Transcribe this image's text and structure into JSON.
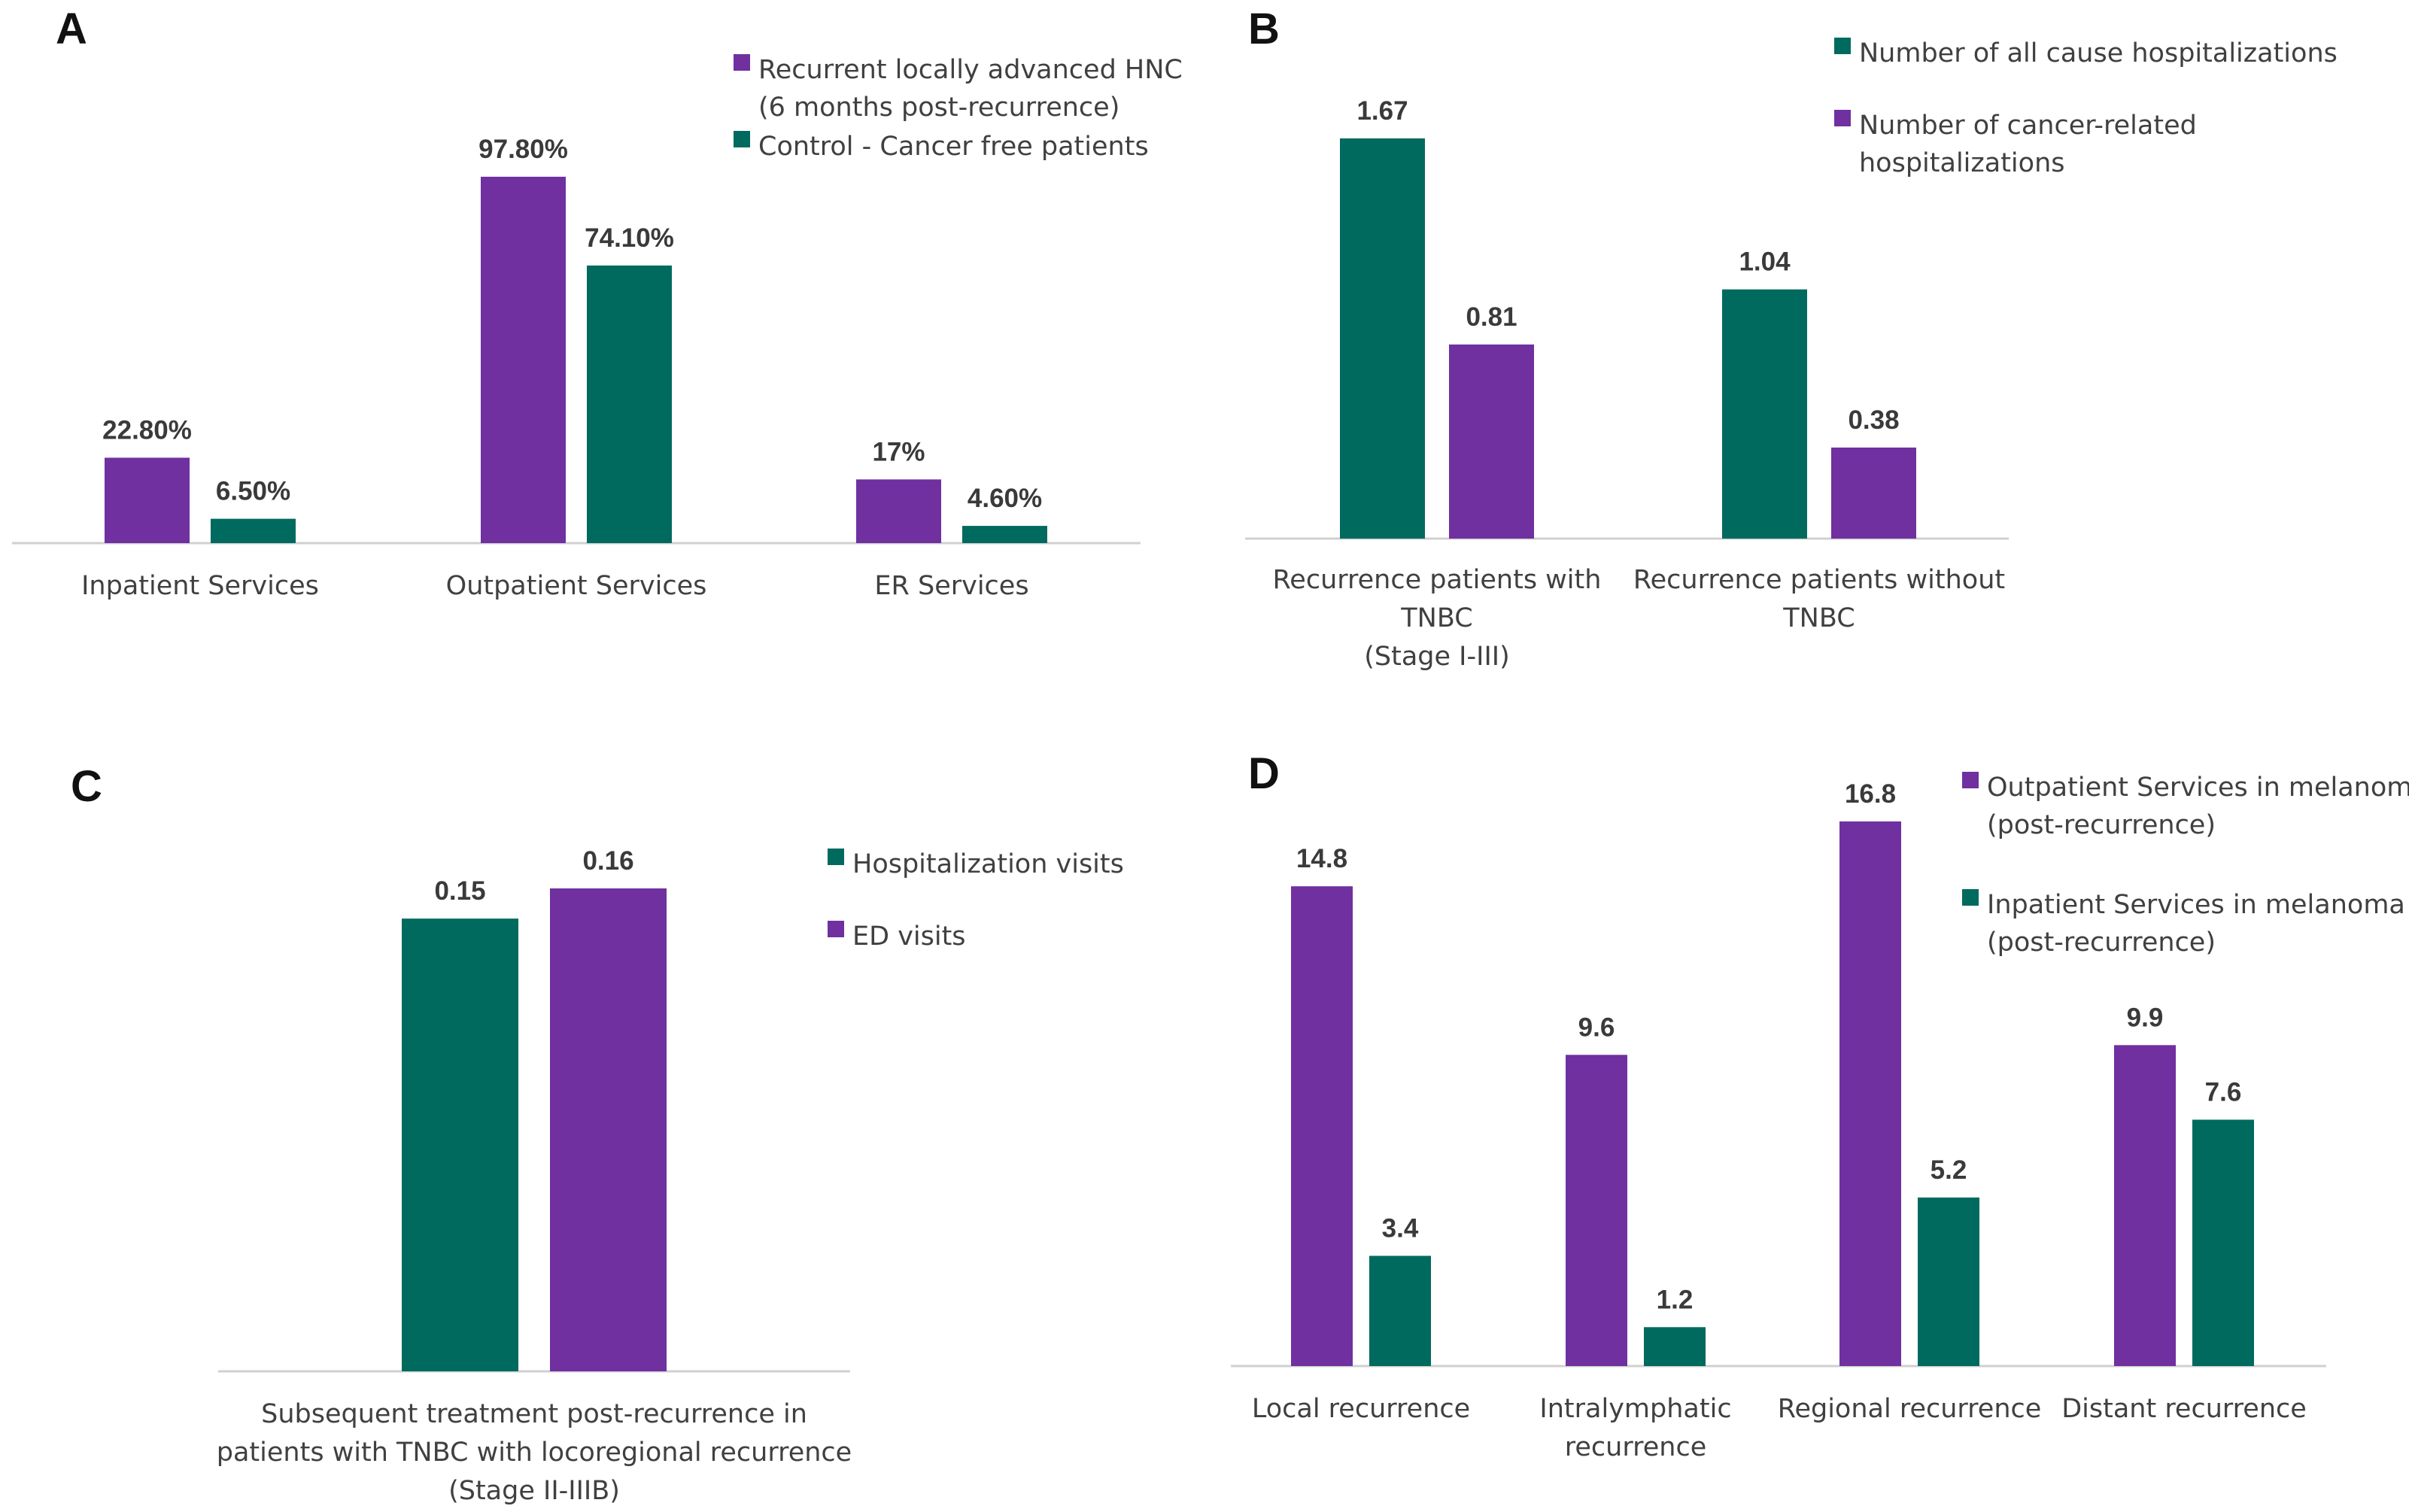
{
  "colors": {
    "purple": "#7030a0",
    "teal": "#006a5e"
  },
  "chart_data": [
    {
      "id": "A",
      "panel_label": "A",
      "type": "bar",
      "categories": [
        "Inpatient Services",
        "Outpatient Services",
        "ER Services"
      ],
      "series": [
        {
          "name": "Recurrent locally advanced HNC (6 months post-recurrence)",
          "legend_lines": [
            "Recurrent locally advanced HNC",
            "(6 months post-recurrence)"
          ],
          "color": "purple",
          "values": [
            22.8,
            97.8,
            17
          ],
          "labels": [
            "22.80%",
            "97.80%",
            "17%"
          ]
        },
        {
          "name": "Control - Cancer free patients",
          "legend_lines": [
            "Control - Cancer free patients"
          ],
          "color": "teal",
          "values": [
            6.5,
            74.1,
            4.6
          ],
          "labels": [
            "6.50%",
            "74.10%",
            "4.60%"
          ]
        }
      ],
      "ylim": [
        0,
        100
      ]
    },
    {
      "id": "B",
      "panel_label": "B",
      "type": "bar",
      "categories": [
        "Recurrence patients with TNBC (Stage I-III)",
        "Recurrence patients without TNBC"
      ],
      "category_lines": [
        [
          "Recurrence patients with",
          "TNBC",
          "(Stage I-III)"
        ],
        [
          "Recurrence patients without",
          "TNBC"
        ]
      ],
      "series": [
        {
          "name": "Number of all cause hospitalizations",
          "legend_lines": [
            "Number of all cause hospitalizations"
          ],
          "color": "teal",
          "values": [
            1.67,
            1.04
          ],
          "labels": [
            "1.67",
            "1.04"
          ]
        },
        {
          "name": "Number of cancer-related hospitalizations",
          "legend_lines": [
            "Number of cancer-related",
            "hospitalizations"
          ],
          "color": "purple",
          "values": [
            0.81,
            0.38
          ],
          "labels": [
            "0.81",
            "0.38"
          ]
        }
      ],
      "ylim": [
        0,
        1.67
      ]
    },
    {
      "id": "C",
      "panel_label": "C",
      "type": "bar",
      "categories": [
        "Subsequent treatment post-recurrence in patients with TNBC with locoregional recurrence (Stage II-IIIB)"
      ],
      "category_lines": [
        [
          "Subsequent treatment post-recurrence in",
          "patients with TNBC with locoregional recurrence",
          "(Stage II-IIIB)"
        ]
      ],
      "series": [
        {
          "name": "Hospitalization visits",
          "legend_lines": [
            "Hospitalization visits"
          ],
          "color": "teal",
          "values": [
            0.15
          ],
          "labels": [
            "0.15"
          ]
        },
        {
          "name": "ED visits",
          "legend_lines": [
            "ED visits"
          ],
          "color": "purple",
          "values": [
            0.16
          ],
          "labels": [
            "0.16"
          ]
        }
      ],
      "ylim": [
        0,
        0.16
      ]
    },
    {
      "id": "D",
      "panel_label": "D",
      "type": "bar",
      "categories": [
        "Local recurrence",
        "Intralymphatic recurrence",
        "Regional recurrence",
        "Distant recurrence"
      ],
      "category_lines": [
        [
          "Local recurrence"
        ],
        [
          "Intralymphatic",
          "recurrence"
        ],
        [
          "Regional recurrence"
        ],
        [
          "Distant recurrence"
        ]
      ],
      "series": [
        {
          "name": "Outpatient Services in melanoma (post-recurrence)",
          "legend_lines": [
            "Outpatient Services in melanoma",
            "(post-recurrence)"
          ],
          "color": "purple",
          "values": [
            14.8,
            9.6,
            16.8,
            9.9
          ],
          "labels": [
            "14.8",
            "9.6",
            "16.8",
            "9.9"
          ]
        },
        {
          "name": "Inpatient Services in melanoma (post-recurrence)",
          "legend_lines": [
            "Inpatient Services in melanoma",
            "(post-recurrence)"
          ],
          "color": "teal",
          "values": [
            3.4,
            1.2,
            5.2,
            7.6
          ],
          "labels": [
            "3.4",
            "1.2",
            "5.2",
            "7.6"
          ]
        }
      ],
      "ylim": [
        0,
        16.8
      ]
    }
  ]
}
